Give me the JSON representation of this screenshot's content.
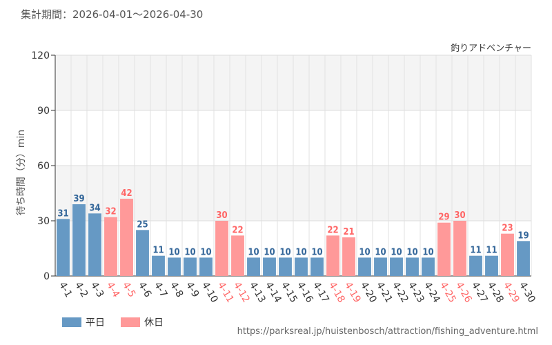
{
  "period": "集計期間：2026-04-01〜2026-04-30",
  "legend": {
    "weekday": {
      "label": "平日",
      "color": "#6699c4"
    },
    "holiday": {
      "label": "休日",
      "color": "#ff9999"
    }
  },
  "source_url": "https://parksreal.jp/huistenbosch/attraction/fishing_adventure.html",
  "chart_data": {
    "type": "bar",
    "title": "釣りアドベンチャー",
    "ylabel": "待ち時間（分）min",
    "xlabel": "",
    "ylim": [
      0,
      120
    ],
    "yticks": [
      0,
      30,
      60,
      90,
      120
    ],
    "grid": true,
    "legend_position": "bottom-left",
    "categories": [
      "4-1",
      "4-2",
      "4-3",
      "4-4",
      "4-5",
      "4-6",
      "4-7",
      "4-8",
      "4-9",
      "4-10",
      "4-11",
      "4-12",
      "4-13",
      "4-14",
      "4-15",
      "4-16",
      "4-17",
      "4-18",
      "4-19",
      "4-20",
      "4-21",
      "4-22",
      "4-23",
      "4-24",
      "4-25",
      "4-26",
      "4-27",
      "4-28",
      "4-29",
      "4-30"
    ],
    "values": [
      31,
      39,
      34,
      32,
      42,
      25,
      11,
      10,
      10,
      10,
      30,
      22,
      10,
      10,
      10,
      10,
      10,
      22,
      21,
      10,
      10,
      10,
      10,
      10,
      29,
      30,
      11,
      11,
      23,
      19
    ],
    "day_type": [
      "weekday",
      "weekday",
      "weekday",
      "holiday",
      "holiday",
      "weekday",
      "weekday",
      "weekday",
      "weekday",
      "weekday",
      "holiday",
      "holiday",
      "weekday",
      "weekday",
      "weekday",
      "weekday",
      "weekday",
      "holiday",
      "holiday",
      "weekday",
      "weekday",
      "weekday",
      "weekday",
      "weekday",
      "holiday",
      "holiday",
      "weekday",
      "weekday",
      "holiday",
      "weekday"
    ],
    "label_colors": {
      "weekday": "#336699",
      "holiday": "#ff6666"
    },
    "tick_label_colors": {
      "weekday": "#333333",
      "holiday": "#ff6666"
    }
  }
}
